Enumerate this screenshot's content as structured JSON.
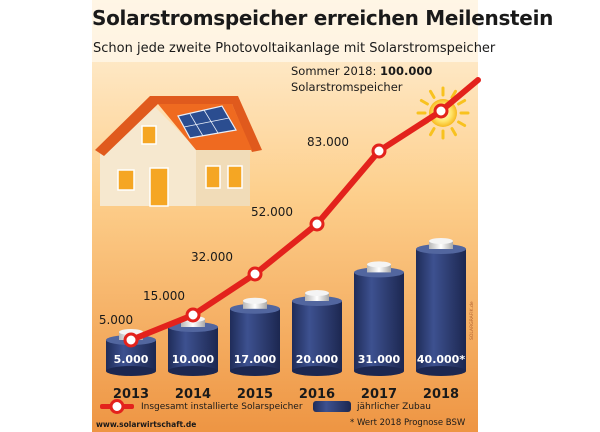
{
  "header": {
    "title": "Solarstromspeicher erreichen Meilenstein",
    "subtitle": "Schon jede zweite Photovoltaikanlage mit Solarstromspeicher"
  },
  "annotation": {
    "prefix": "Sommer 2018: ",
    "value": "100.000",
    "line2": "Solarstromspeicher"
  },
  "legend": {
    "line_label": "Insgesamt installierte Solarspeicher",
    "bar_label": "jährlicher Zubau",
    "placement": "bottom"
  },
  "footer": {
    "website": "www.solarwirtschaft.de",
    "footnote": "* Wert 2018 Prognose BSW",
    "credit": "SOLARGRAFIK.de"
  },
  "chart_data": {
    "type": "bar",
    "categories": [
      "2013",
      "2014",
      "2015",
      "2016",
      "2017",
      "2018"
    ],
    "series": [
      {
        "name": "jährlicher Zubau",
        "type": "bar",
        "values": [
          5000,
          10000,
          17000,
          20000,
          31000,
          40000
        ],
        "labels": [
          "5.000",
          "10.000",
          "17.000",
          "20.000",
          "31.000",
          "40.000*"
        ]
      },
      {
        "name": "Insgesamt installierte Solarspeicher",
        "type": "line",
        "values": [
          5000,
          15000,
          32000,
          52000,
          83000,
          100000
        ],
        "labels": [
          "5.000",
          "15.000",
          "32.000",
          "52.000",
          "83.000",
          "100.000"
        ]
      }
    ],
    "colors": {
      "bar": "#2d3c6e",
      "line": "#e3221c",
      "background_top": "#ffe2b3",
      "background_bottom": "#ef9a4a"
    }
  }
}
